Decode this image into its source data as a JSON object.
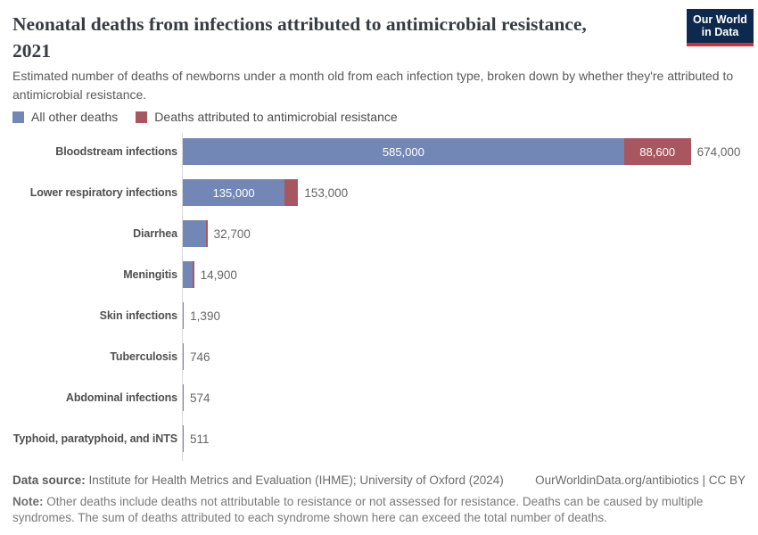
{
  "header": {
    "title_lines": [
      "Neonatal deaths from infections attributed to antimicrobial resistance,",
      "2021"
    ],
    "subtitle": "Estimated number of deaths of newborns under a month old from each infection type, broken down by whether they're attributed to antimicrobial resistance."
  },
  "logo": {
    "line1": "Our World",
    "line2": "in Data",
    "bg_color": "#0d2a4e",
    "stripe_color": "#cf3038"
  },
  "legend": {
    "items": [
      {
        "label": "All other deaths",
        "color": "#7287b5"
      },
      {
        "label": "Deaths attributed to antimicrobial resistance",
        "color": "#a8565f"
      }
    ]
  },
  "chart_data": {
    "type": "bar",
    "orientation": "horizontal",
    "stacked": true,
    "xmax": 674000,
    "grid": false,
    "series_names": [
      "All other deaths",
      "Deaths attributed to antimicrobial resistance"
    ],
    "series_colors": [
      "#7287b5",
      "#a8565f"
    ],
    "rows": [
      {
        "category": "Bloodstream infections",
        "other": 585000,
        "amr": 88600,
        "total": 674000,
        "other_label": "585,000",
        "amr_label": "88,600",
        "total_label": "674,000"
      },
      {
        "category": "Lower respiratory infections",
        "other": 135000,
        "amr": 18000,
        "total": 153000,
        "other_label": "135,000",
        "amr_label": null,
        "total_label": "153,000"
      },
      {
        "category": "Diarrhea",
        "other": null,
        "amr": null,
        "total": 32700,
        "other_label": null,
        "amr_label": null,
        "total_label": "32,700",
        "amr_sliver": true
      },
      {
        "category": "Meningitis",
        "other": null,
        "amr": null,
        "total": 14900,
        "other_label": null,
        "amr_label": null,
        "total_label": "14,900",
        "amr_sliver": true
      },
      {
        "category": "Skin infections",
        "other": null,
        "amr": null,
        "total": 1390,
        "other_label": null,
        "amr_label": null,
        "total_label": "1,390"
      },
      {
        "category": "Tuberculosis",
        "other": null,
        "amr": null,
        "total": 746,
        "other_label": null,
        "amr_label": null,
        "total_label": "746"
      },
      {
        "category": "Abdominal infections",
        "other": null,
        "amr": null,
        "total": 574,
        "other_label": null,
        "amr_label": null,
        "total_label": "574"
      },
      {
        "category": "Typhoid, paratyphoid, and iNTS",
        "other": null,
        "amr": null,
        "total": 511,
        "other_label": null,
        "amr_label": null,
        "total_label": "511"
      }
    ]
  },
  "footer": {
    "data_source_label": "Data source:",
    "data_source_text": "Institute for Health Metrics and Evaluation (IHME); University of Oxford (2024)",
    "link_text": "OurWorldinData.org/antibiotics | CC BY",
    "note_label": "Note:",
    "note_text": "Other deaths include deaths not attributable to resistance or not assessed for resistance. Deaths can be caused by multiple syndromes. The sum of deaths attributed to each syndrome shown here can exceed the total number of deaths."
  }
}
